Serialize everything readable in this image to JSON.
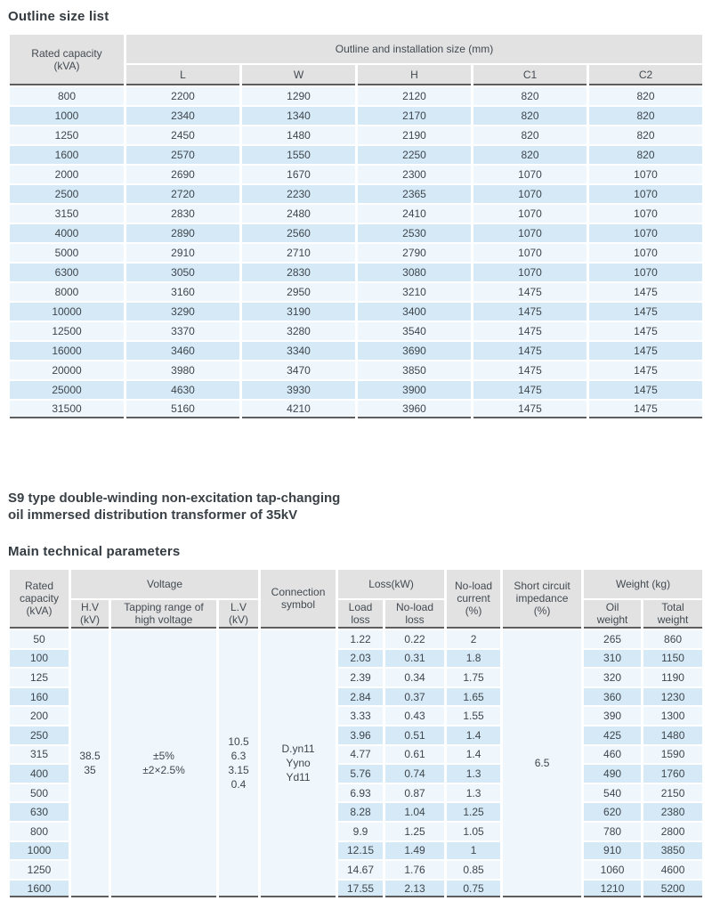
{
  "titles": {
    "outline_title": "Outline size list",
    "section_heading": "S9 type double-winding non-excitation tap-changing\noil immersed distribution transformer of 35kV",
    "parameters_title": "Main technical parameters"
  },
  "colors": {
    "header_bg": "#e2e2e2",
    "row_light": "#eff7fc",
    "row_blue": "#d5e9f6",
    "merged_bg": "#e9f2fa",
    "rule_dark": "#5e5e5e",
    "text": "#3f464d"
  },
  "outline_table": {
    "header": {
      "rated_capacity": "Rated capacity\n(kVA)",
      "group": "Outline and installation size (mm)",
      "columns": [
        "L",
        "W",
        "H",
        "C1",
        "C2"
      ]
    },
    "column_names": [
      "rated-capacity",
      "l",
      "w",
      "h",
      "c1",
      "c2"
    ],
    "rows": [
      [
        "800",
        "2200",
        "1290",
        "2120",
        "820",
        "820"
      ],
      [
        "1000",
        "2340",
        "1340",
        "2170",
        "820",
        "820"
      ],
      [
        "1250",
        "2450",
        "1480",
        "2190",
        "820",
        "820"
      ],
      [
        "1600",
        "2570",
        "1550",
        "2250",
        "820",
        "820"
      ],
      [
        "2000",
        "2690",
        "1670",
        "2300",
        "1070",
        "1070"
      ],
      [
        "2500",
        "2720",
        "2230",
        "2365",
        "1070",
        "1070"
      ],
      [
        "3150",
        "2830",
        "2480",
        "2410",
        "1070",
        "1070"
      ],
      [
        "4000",
        "2890",
        "2560",
        "2530",
        "1070",
        "1070"
      ],
      [
        "5000",
        "2910",
        "2710",
        "2790",
        "1070",
        "1070"
      ],
      [
        "6300",
        "3050",
        "2830",
        "3080",
        "1070",
        "1070"
      ],
      [
        "8000",
        "3160",
        "2950",
        "3210",
        "1475",
        "1475"
      ],
      [
        "10000",
        "3290",
        "3190",
        "3400",
        "1475",
        "1475"
      ],
      [
        "12500",
        "3370",
        "3280",
        "3540",
        "1475",
        "1475"
      ],
      [
        "16000",
        "3460",
        "3340",
        "3690",
        "1475",
        "1475"
      ],
      [
        "20000",
        "3980",
        "3470",
        "3850",
        "1475",
        "1475"
      ],
      [
        "25000",
        "4630",
        "3930",
        "3900",
        "1475",
        "1475"
      ],
      [
        "31500",
        "5160",
        "4210",
        "3960",
        "1475",
        "1475"
      ]
    ]
  },
  "parameters_table": {
    "header": {
      "rated_capacity": "Rated\ncapacity\n(kVA)",
      "voltage_group": "Voltage",
      "hv": "H.V\n(kV)",
      "tapping": "Tapping range of\nhigh voltage",
      "lv": "L.V\n(kV)",
      "connection": "Connection\nsymbol",
      "loss_group": "Loss(kW)",
      "load_loss": "Load\nloss",
      "no_load_loss": "No-load\nloss",
      "no_load_current": "No-load\ncurrent\n(%)",
      "impedance": "Short circuit\nimpedance\n(%)",
      "weight_group": "Weight (kg)",
      "oil_weight": "Oil\nweight",
      "total_weight": "Total\nweight"
    },
    "column_names": [
      "rated-capacity",
      "load-loss",
      "no-load-loss",
      "no-load-current",
      "oil-weight",
      "total-weight"
    ],
    "merged": {
      "hv": "38.5\n35",
      "tapping": "±5%\n±2×2.5%",
      "lv": "10.5\n6.3\n3.15\n0.4",
      "connection": "D.yn11\nYyno\nYd11",
      "impedance": "6.5"
    },
    "rows": [
      [
        "50",
        "1.22",
        "0.22",
        "2",
        "265",
        "860"
      ],
      [
        "100",
        "2.03",
        "0.31",
        "1.8",
        "310",
        "1150"
      ],
      [
        "125",
        "2.39",
        "0.34",
        "1.75",
        "320",
        "1190"
      ],
      [
        "160",
        "2.84",
        "0.37",
        "1.65",
        "360",
        "1230"
      ],
      [
        "200",
        "3.33",
        "0.43",
        "1.55",
        "390",
        "1300"
      ],
      [
        "250",
        "3.96",
        "0.51",
        "1.4",
        "425",
        "1480"
      ],
      [
        "315",
        "4.77",
        "0.61",
        "1.4",
        "460",
        "1590"
      ],
      [
        "400",
        "5.76",
        "0.74",
        "1.3",
        "490",
        "1760"
      ],
      [
        "500",
        "6.93",
        "0.87",
        "1.3",
        "540",
        "2150"
      ],
      [
        "630",
        "8.28",
        "1.04",
        "1.25",
        "620",
        "2380"
      ],
      [
        "800",
        "9.9",
        "1.25",
        "1.05",
        "780",
        "2800"
      ],
      [
        "1000",
        "12.15",
        "1.49",
        "1",
        "910",
        "3850"
      ],
      [
        "1250",
        "14.67",
        "1.76",
        "0.85",
        "1060",
        "4600"
      ],
      [
        "1600",
        "17.55",
        "2.13",
        "0.75",
        "1210",
        "5200"
      ]
    ]
  }
}
